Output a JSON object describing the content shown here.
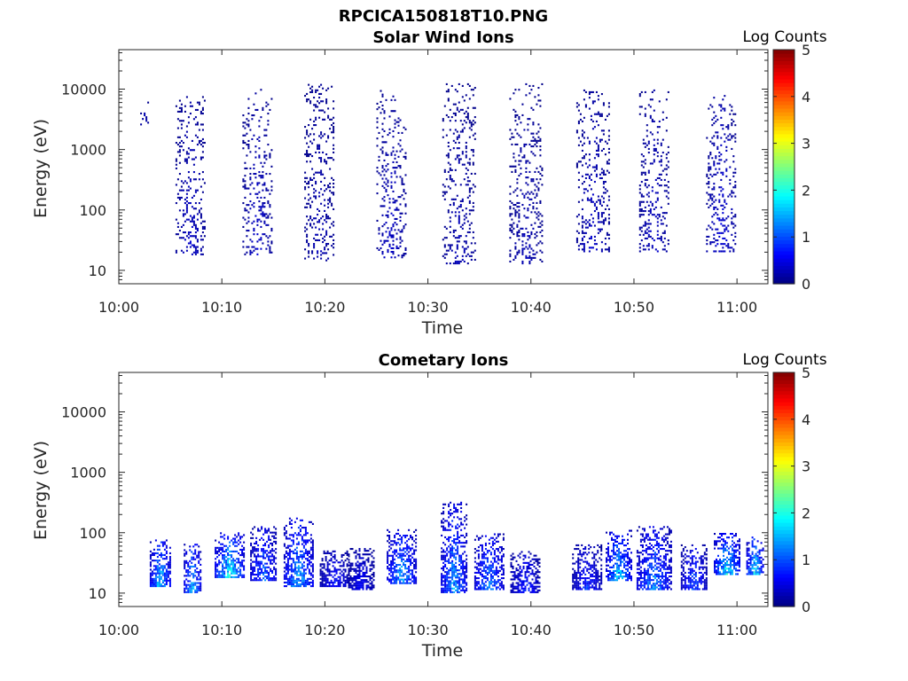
{
  "figure_title": "RPCICA150818T10.PNG",
  "colormap": [
    "#00007f",
    "#0000ff",
    "#007fff",
    "#00ffff",
    "#7fff7f",
    "#ffff00",
    "#ff7f00",
    "#ff0000",
    "#7f0000"
  ],
  "chart_data": [
    {
      "type": "heatmap",
      "title": "Solar Wind Ions",
      "xlabel": "Time",
      "ylabel": "Energy (eV)",
      "x_range_minutes": [
        0,
        63
      ],
      "x_ticks": [
        "10:00",
        "10:10",
        "10:20",
        "10:30",
        "10:40",
        "10:50",
        "11:00"
      ],
      "y_scale": "log",
      "y_range": [
        6,
        45000
      ],
      "y_ticks": [
        "10",
        "100",
        "1000",
        "10000"
      ],
      "colorbar": {
        "label": "Log Counts",
        "range": [
          0,
          5
        ],
        "ticks": [
          "0",
          "1",
          "2",
          "3",
          "4",
          "5"
        ]
      },
      "bursts": [
        {
          "t": 2.5,
          "width": 1.2,
          "log_e_lo": 3.4,
          "log_e_hi": 3.8,
          "level": 0.3
        },
        {
          "t": 7.0,
          "width": 3.0,
          "log_e_lo": 1.25,
          "log_e_hi": 3.9,
          "level": 0.4
        },
        {
          "t": 13.5,
          "width": 3.0,
          "log_e_lo": 1.25,
          "log_e_hi": 4.0,
          "level": 0.4
        },
        {
          "t": 19.5,
          "width": 3.0,
          "log_e_lo": 1.15,
          "log_e_hi": 4.1,
          "level": 0.3
        },
        {
          "t": 26.5,
          "width": 3.0,
          "log_e_lo": 1.2,
          "log_e_hi": 4.0,
          "level": 0.4
        },
        {
          "t": 33.0,
          "width": 3.2,
          "log_e_lo": 1.1,
          "log_e_hi": 4.1,
          "level": 0.3
        },
        {
          "t": 39.5,
          "width": 3.2,
          "log_e_lo": 1.1,
          "log_e_hi": 4.1,
          "level": 0.3
        },
        {
          "t": 46.0,
          "width": 3.2,
          "log_e_lo": 1.3,
          "log_e_hi": 4.0,
          "level": 0.4
        },
        {
          "t": 52.0,
          "width": 3.0,
          "log_e_lo": 1.3,
          "log_e_hi": 4.0,
          "level": 0.4
        },
        {
          "t": 58.5,
          "width": 3.0,
          "log_e_lo": 1.3,
          "log_e_hi": 3.9,
          "level": 0.5
        }
      ]
    },
    {
      "type": "heatmap",
      "title": "Cometary Ions",
      "xlabel": "Time",
      "ylabel": "Energy (eV)",
      "x_range_minutes": [
        0,
        63
      ],
      "x_ticks": [
        "10:00",
        "10:10",
        "10:20",
        "10:30",
        "10:40",
        "10:50",
        "11:00"
      ],
      "y_scale": "log",
      "y_range": [
        6,
        45000
      ],
      "y_ticks": [
        "10",
        "100",
        "1000",
        "10000"
      ],
      "colorbar": {
        "label": "Log Counts",
        "range": [
          0,
          5
        ],
        "ticks": [
          "0",
          "1",
          "2",
          "3",
          "4",
          "5"
        ]
      },
      "bursts": [
        {
          "t": 4.0,
          "width": 2.0,
          "log_e_lo": 1.1,
          "log_e_hi": 1.9,
          "level": 1.8
        },
        {
          "t": 7.2,
          "width": 1.8,
          "log_e_lo": 1.0,
          "log_e_hi": 1.85,
          "level": 1.7
        },
        {
          "t": 10.8,
          "width": 3.0,
          "log_e_lo": 1.25,
          "log_e_hi": 2.0,
          "level": 2.0
        },
        {
          "t": 14.0,
          "width": 2.5,
          "log_e_lo": 1.2,
          "log_e_hi": 2.1,
          "level": 1.3
        },
        {
          "t": 17.5,
          "width": 3.0,
          "log_e_lo": 1.1,
          "log_e_hi": 2.25,
          "level": 1.6
        },
        {
          "t": 21.0,
          "width": 3.0,
          "log_e_lo": 1.1,
          "log_e_hi": 1.7,
          "level": 0.8
        },
        {
          "t": 23.5,
          "width": 2.5,
          "log_e_lo": 1.05,
          "log_e_hi": 1.75,
          "level": 0.7
        },
        {
          "t": 27.5,
          "width": 3.0,
          "log_e_lo": 1.15,
          "log_e_hi": 2.05,
          "level": 1.6
        },
        {
          "t": 32.5,
          "width": 2.5,
          "log_e_lo": 1.0,
          "log_e_hi": 2.5,
          "level": 1.5
        },
        {
          "t": 36.0,
          "width": 3.0,
          "log_e_lo": 1.05,
          "log_e_hi": 2.0,
          "level": 1.4
        },
        {
          "t": 39.5,
          "width": 3.0,
          "log_e_lo": 1.0,
          "log_e_hi": 1.7,
          "level": 0.9
        },
        {
          "t": 45.5,
          "width": 3.0,
          "log_e_lo": 1.05,
          "log_e_hi": 1.85,
          "level": 0.9
        },
        {
          "t": 48.5,
          "width": 2.5,
          "log_e_lo": 1.2,
          "log_e_hi": 2.05,
          "level": 1.8
        },
        {
          "t": 52.0,
          "width": 3.5,
          "log_e_lo": 1.05,
          "log_e_hi": 2.1,
          "level": 1.4
        },
        {
          "t": 55.8,
          "width": 2.5,
          "log_e_lo": 1.05,
          "log_e_hi": 1.8,
          "level": 1.1
        },
        {
          "t": 59.0,
          "width": 2.5,
          "log_e_lo": 1.3,
          "log_e_hi": 2.0,
          "level": 2.0
        },
        {
          "t": 61.8,
          "width": 1.8,
          "log_e_lo": 1.3,
          "log_e_hi": 1.95,
          "level": 2.0
        }
      ]
    }
  ]
}
